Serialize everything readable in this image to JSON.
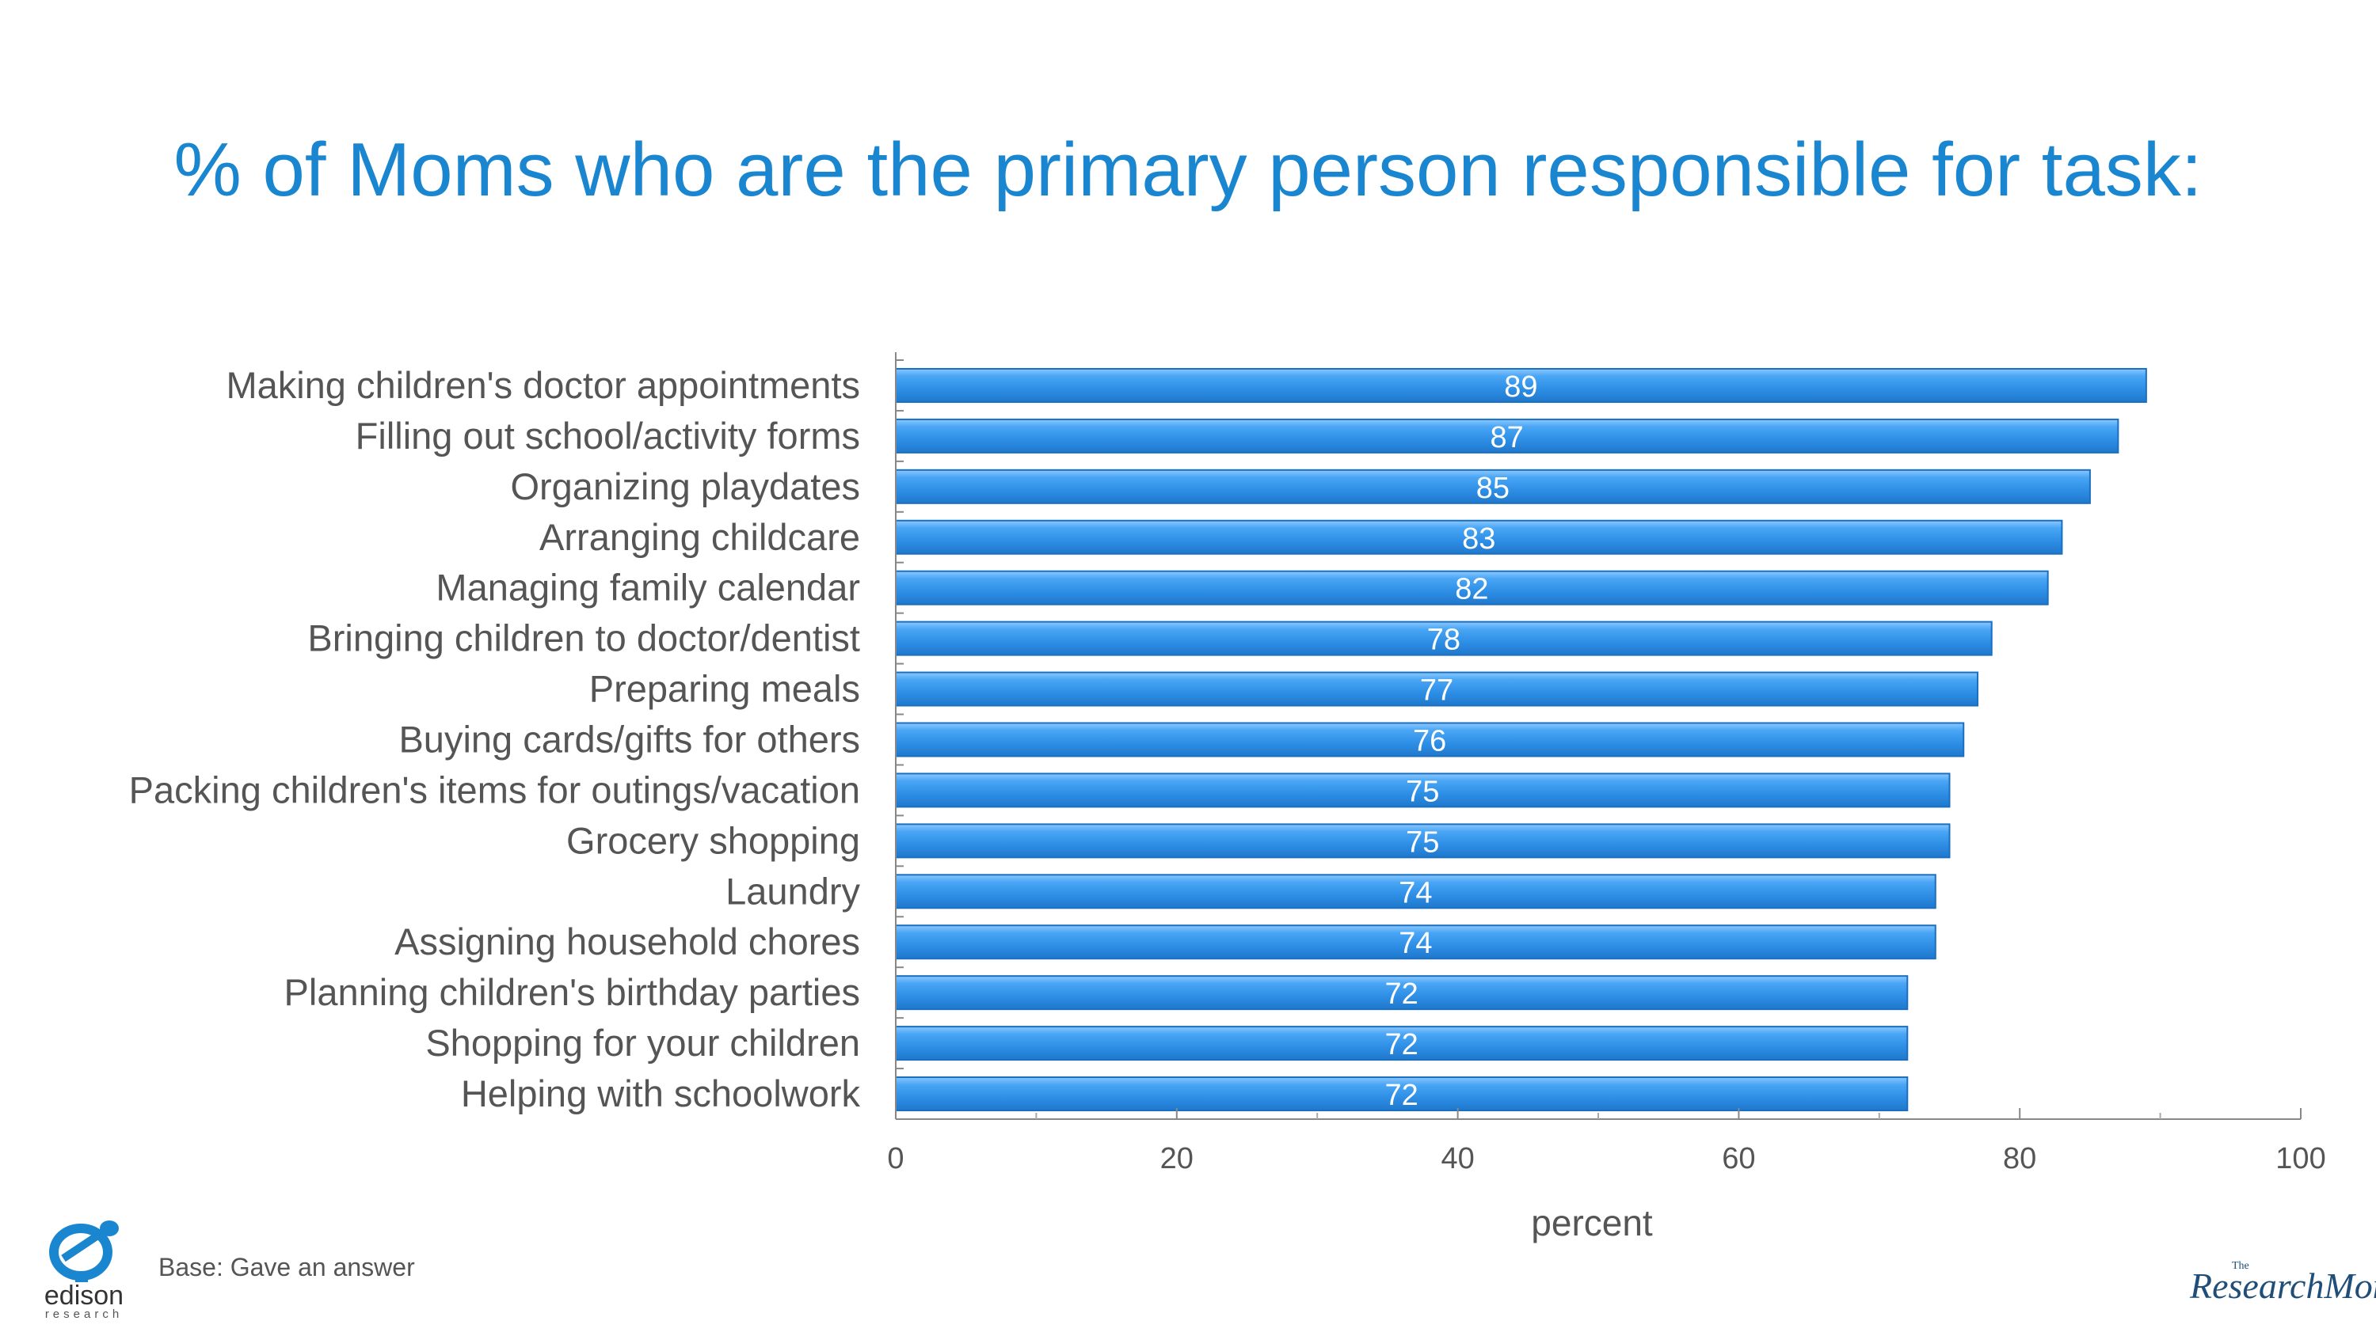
{
  "title": "% of Moms who are the primary person responsible for task:",
  "footnote": "Base: Gave an answer",
  "logos": {
    "edison_name": "edison",
    "edison_sub": "research",
    "research_moms_the": "The",
    "research_moms": "ResearchMoms"
  },
  "colors": {
    "title": "#1a86d0",
    "bar": "#2e8fe6",
    "bar_highlight": "#8cc8ff",
    "text": "#555555"
  },
  "chart_data": {
    "type": "bar",
    "orientation": "horizontal",
    "categories": [
      "Making children's doctor appointments",
      "Filling out school/activity forms",
      "Organizing playdates",
      "Arranging childcare",
      "Managing family calendar",
      "Bringing children to doctor/dentist",
      "Preparing meals",
      "Buying cards/gifts for others",
      "Packing children's items for outings/vacation",
      "Grocery shopping",
      "Laundry",
      "Assigning household chores",
      "Planning children's birthday parties",
      "Shopping for your children",
      "Helping with schoolwork"
    ],
    "values": [
      89,
      87,
      85,
      83,
      82,
      78,
      77,
      76,
      75,
      75,
      74,
      74,
      72,
      72,
      72
    ],
    "data_labels": [
      "89",
      "87",
      "85",
      "83",
      "82",
      "78",
      "77",
      "76",
      "75",
      "75",
      "74",
      "74",
      "72",
      "72",
      "72"
    ],
    "xlabel": "percent",
    "ylabel": "",
    "xlim": [
      0,
      100
    ],
    "xticks": [
      0,
      20,
      40,
      60,
      80,
      100
    ],
    "xtick_labels": [
      "0",
      "20",
      "40",
      "60",
      "80",
      "100"
    ],
    "minor_ticks": [
      10,
      30,
      50,
      70,
      90
    ],
    "grid": false,
    "legend": "none"
  }
}
